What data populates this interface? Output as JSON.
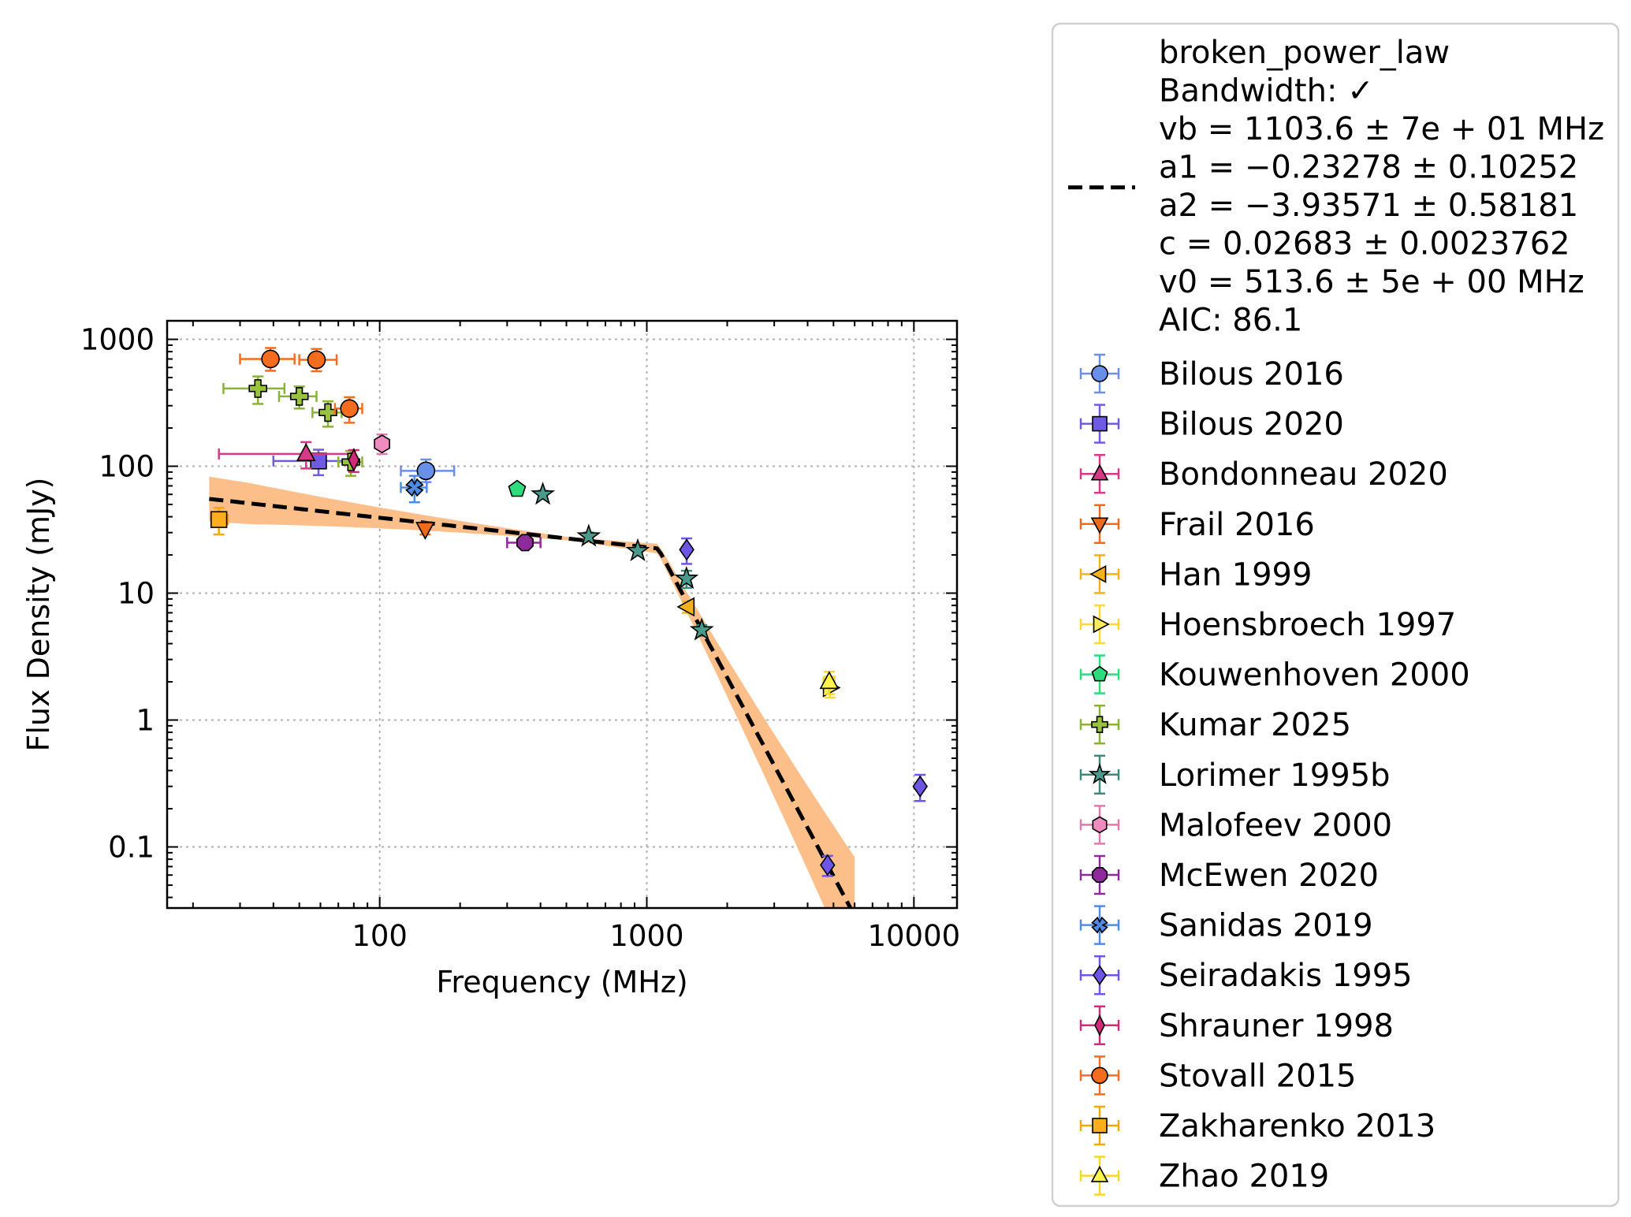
{
  "chart_data": {
    "type": "scatter",
    "xlabel": "Frequency (MHz)",
    "ylabel": "Flux Density (mJy)",
    "xscale": "log",
    "yscale": "log",
    "xlim": [
      16,
      14500
    ],
    "ylim": [
      0.033,
      1400
    ],
    "grid": true,
    "legend_placement": "outside-right",
    "x_tick_labels": [
      "100",
      "1000",
      "10000"
    ],
    "x_tick_values": [
      100,
      1000,
      10000
    ],
    "y_tick_labels": [
      "0.1",
      "1",
      "10",
      "100",
      "1000"
    ],
    "y_tick_values": [
      0.1,
      1,
      10,
      100,
      1000
    ],
    "fit": {
      "lines": [
        "broken_power_law",
        "Bandwidth: ✓",
        "vb = 1103.6 ± 7e + 01 MHz",
        "a1 = −0.23278 ± 0.10252",
        "a2 = −3.93571 ± 0.58181",
        "c = 0.02683 ± 0.0023762",
        "v0 = 513.6 ± 5e + 00 MHz",
        "AIC: 86.1"
      ],
      "color": "#000000",
      "band_color": "#fdbf8a",
      "vb": 1103.6,
      "a1": -0.23278,
      "a2": -3.93571,
      "c": 0.02683,
      "v0": 513.6,
      "x_range": [
        23,
        6000
      ]
    },
    "series": [
      {
        "name": "Bilous 2016",
        "marker": "circle",
        "color": "#6a8fe8",
        "edge": "#6a8fe8",
        "points": [
          {
            "x": 149,
            "y": 92,
            "xlo": 120,
            "xhi": 190,
            "ylo": 75,
            "yhi": 113
          }
        ]
      },
      {
        "name": "Bilous 2020",
        "marker": "square",
        "color": "#6f5be3",
        "edge": "#6f5be3",
        "points": [
          {
            "x": 59,
            "y": 110,
            "xlo": 40,
            "xhi": 80,
            "ylo": 85,
            "yhi": 135
          }
        ]
      },
      {
        "name": "Bondonneau 2020",
        "marker": "triangle-up",
        "color": "#d63a86",
        "edge": "#d63a86",
        "points": [
          {
            "x": 53,
            "y": 125,
            "xlo": 25,
            "xhi": 80,
            "ylo": 96,
            "yhi": 155
          }
        ]
      },
      {
        "name": "Frail 2016",
        "marker": "triangle-down",
        "color": "#ee6b1c",
        "edge": "#ee6b1c",
        "points": [
          {
            "x": 148,
            "y": 32,
            "xlo": 148,
            "xhi": 148,
            "ylo": 29,
            "yhi": 36
          }
        ]
      },
      {
        "name": "Han 1999",
        "marker": "triangle-left",
        "color": "#f3b21b",
        "edge": "#f3b21b",
        "points": [
          {
            "x": 1420,
            "y": 7.8,
            "xlo": 1420,
            "xhi": 1420,
            "ylo": 7.0,
            "yhi": 8.6
          }
        ]
      },
      {
        "name": "Hoensbroech 1997",
        "marker": "triangle-right",
        "color": "#fdeb5d",
        "edge": "#fdd835",
        "points": [
          {
            "x": 4850,
            "y": 1.8,
            "xlo": 4850,
            "xhi": 4850,
            "ylo": 1.5,
            "yhi": 2.2
          }
        ]
      },
      {
        "name": "Kouwenhoven 2000",
        "marker": "pentagon",
        "color": "#2ddc7c",
        "edge": "#2ddc7c",
        "points": [
          {
            "x": 327,
            "y": 66,
            "xlo": 327,
            "xhi": 327,
            "ylo": 62,
            "yhi": 70
          }
        ]
      },
      {
        "name": "Kumar 2025",
        "marker": "plus",
        "color": "#99c33c",
        "edge": "#8ab336",
        "points": [
          {
            "x": 35,
            "y": 410,
            "xlo": 26,
            "xhi": 44,
            "ylo": 310,
            "yhi": 510
          },
          {
            "x": 50,
            "y": 355,
            "xlo": 42,
            "xhi": 58,
            "ylo": 285,
            "yhi": 425
          },
          {
            "x": 64,
            "y": 265,
            "xlo": 56,
            "xhi": 72,
            "ylo": 205,
            "yhi": 325
          },
          {
            "x": 78,
            "y": 108,
            "xlo": 70,
            "xhi": 86,
            "ylo": 84,
            "yhi": 132
          }
        ]
      },
      {
        "name": "Lorimer 1995b",
        "marker": "star",
        "color": "#4a9a8c",
        "edge": "#3c8a7c",
        "points": [
          {
            "x": 408,
            "y": 60,
            "xlo": 408,
            "xhi": 408,
            "ylo": 56,
            "yhi": 64
          },
          {
            "x": 606,
            "y": 28,
            "xlo": 606,
            "xhi": 606,
            "ylo": 26,
            "yhi": 30
          },
          {
            "x": 925,
            "y": 21.5,
            "xlo": 925,
            "xhi": 925,
            "ylo": 20,
            "yhi": 23
          },
          {
            "x": 1408,
            "y": 13,
            "xlo": 1408,
            "xhi": 1408,
            "ylo": 11,
            "yhi": 15
          },
          {
            "x": 1606,
            "y": 5.1,
            "xlo": 1606,
            "xhi": 1606,
            "ylo": 4.6,
            "yhi": 5.6
          }
        ]
      },
      {
        "name": "Malofeev 2000",
        "marker": "hexagon",
        "color": "#ee8bbf",
        "edge": "#e07aae",
        "points": [
          {
            "x": 102,
            "y": 150,
            "xlo": 102,
            "xhi": 102,
            "ylo": 125,
            "yhi": 178
          }
        ]
      },
      {
        "name": "McEwen 2020",
        "marker": "octagon",
        "color": "#8e2a9a",
        "edge": "#8e2a9a",
        "points": [
          {
            "x": 350,
            "y": 25,
            "xlo": 300,
            "xhi": 400,
            "ylo": 23,
            "yhi": 27
          }
        ]
      },
      {
        "name": "Sanidas 2019",
        "marker": "x-filled",
        "color": "#4f8ae6",
        "edge": "#4f8ae6",
        "points": [
          {
            "x": 135,
            "y": 68,
            "xlo": 120,
            "xhi": 150,
            "ylo": 52,
            "yhi": 84
          }
        ]
      },
      {
        "name": "Seiradakis 1995",
        "marker": "diamond",
        "color": "#6f55e6",
        "edge": "#6f55e6",
        "points": [
          {
            "x": 1410,
            "y": 22,
            "xlo": 1410,
            "xhi": 1410,
            "ylo": 17,
            "yhi": 27
          },
          {
            "x": 4750,
            "y": 0.072,
            "xlo": 4750,
            "xhi": 4750,
            "ylo": 0.059,
            "yhi": 0.085
          },
          {
            "x": 10550,
            "y": 0.3,
            "xlo": 10550,
            "xhi": 10550,
            "ylo": 0.23,
            "yhi": 0.37
          }
        ]
      },
      {
        "name": "Shrauner 1998",
        "marker": "thin-diamond",
        "color": "#d02a78",
        "edge": "#d02a78",
        "points": [
          {
            "x": 80,
            "y": 112,
            "xlo": 80,
            "xhi": 80,
            "ylo": 90,
            "yhi": 134
          }
        ]
      },
      {
        "name": "Stovall 2015",
        "marker": "circle",
        "color": "#f46d1f",
        "edge": "#f46d1f",
        "points": [
          {
            "x": 39,
            "y": 700,
            "xlo": 30,
            "xhi": 48,
            "ylo": 565,
            "yhi": 855
          },
          {
            "x": 58,
            "y": 690,
            "xlo": 50,
            "xhi": 69,
            "ylo": 560,
            "yhi": 840
          },
          {
            "x": 77,
            "y": 285,
            "xlo": 68,
            "xhi": 86,
            "ylo": 220,
            "yhi": 350
          }
        ]
      },
      {
        "name": "Zakharenko 2013",
        "marker": "square",
        "color": "#fcae1c",
        "edge": "#f5a800",
        "points": [
          {
            "x": 25,
            "y": 38,
            "xlo": 24,
            "xhi": 27,
            "ylo": 29,
            "yhi": 47
          }
        ]
      },
      {
        "name": "Zhao 2019",
        "marker": "triangle-up",
        "color": "#fdf24e",
        "edge": "#f3d82a",
        "points": [
          {
            "x": 4820,
            "y": 2.0,
            "xlo": 4600,
            "xhi": 5050,
            "ylo": 1.6,
            "yhi": 2.4
          }
        ]
      }
    ]
  }
}
